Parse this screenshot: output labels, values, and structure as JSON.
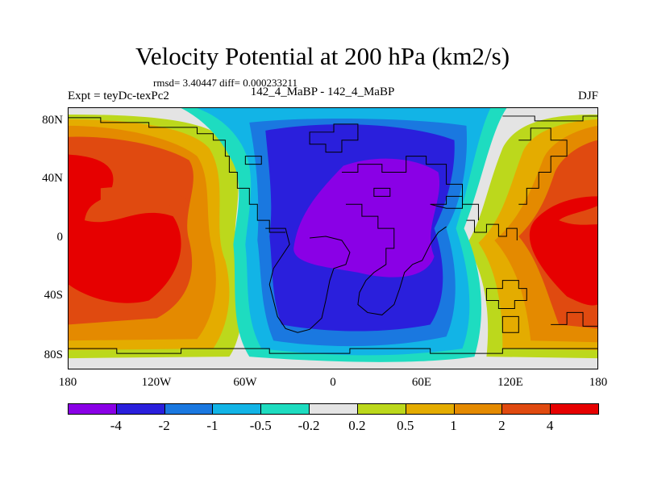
{
  "chart_data": {
    "type": "heatmap",
    "title": "Velocity Potential at 200 hPa (km2/s)",
    "stats": "rmsd= 3.40447 diff= 0.000233211",
    "subtitle": "142_4_MaBP - 142_4_MaBP",
    "left_label": "Expt = teyDc-texPc2",
    "right_label": "DJF",
    "x_ticks": [
      "180",
      "120W",
      "60W",
      "0",
      "60E",
      "120E",
      "180"
    ],
    "x_tick_values": [
      -180,
      -120,
      -60,
      0,
      60,
      120,
      180
    ],
    "xlim": [
      -180,
      180
    ],
    "y_ticks": [
      "80N",
      "40N",
      "0",
      "40S",
      "80S"
    ],
    "y_tick_values": [
      80,
      40,
      0,
      -40,
      -80
    ],
    "ylim": [
      -90,
      90
    ],
    "colorbar": {
      "levels": [
        "-4",
        "-2",
        "-1",
        "-0.5",
        "-0.2",
        "0.2",
        "0.5",
        "1",
        "2",
        "4"
      ],
      "colors": [
        "#8a00e6",
        "#2a1fdc",
        "#1a78e0",
        "#12b4e6",
        "#1edcc0",
        "#e4e4e4",
        "#bcd81c",
        "#e4ac00",
        "#e48a00",
        "#e04a10",
        "#e60000"
      ]
    }
  }
}
